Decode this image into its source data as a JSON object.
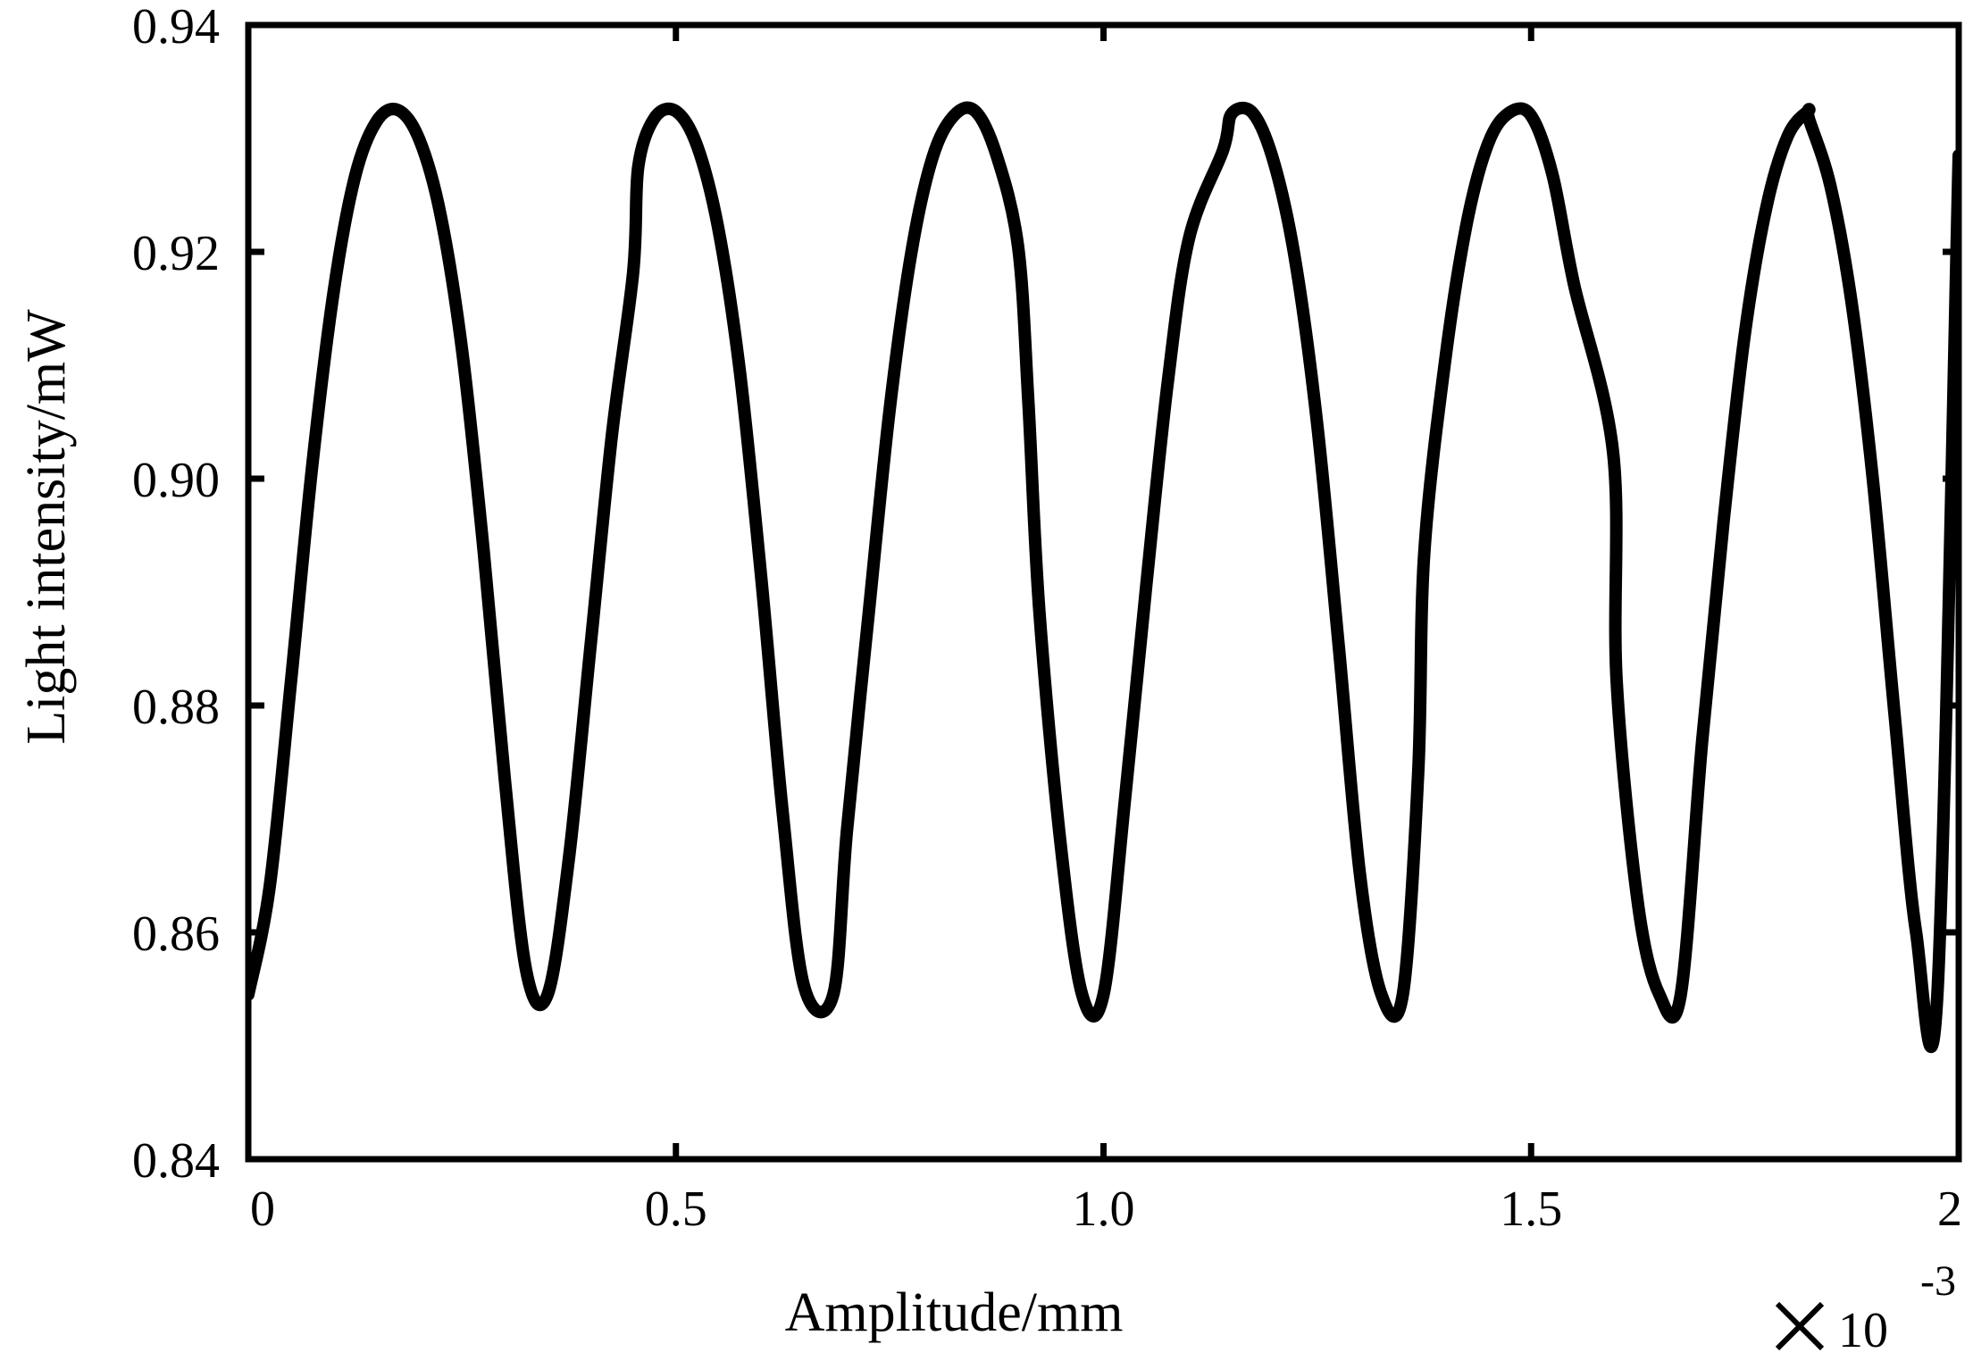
{
  "chart_data": {
    "type": "line",
    "title": "",
    "xlabel": "Amplitude/mm",
    "ylabel": "Light intensity/mW",
    "x_multiplier": {
      "base": "10",
      "exponent": "-3"
    },
    "xlim": [
      0,
      2
    ],
    "ylim": [
      0.84,
      0.94
    ],
    "x_ticks": [
      0,
      0.5,
      1.0,
      1.5,
      2
    ],
    "x_tick_labels": [
      "0",
      "0.5",
      "1.0",
      "1.5",
      "2"
    ],
    "y_ticks": [
      0.84,
      0.86,
      0.88,
      0.9,
      0.92,
      0.94
    ],
    "y_tick_labels": [
      "0.84",
      "0.86",
      "0.88",
      "0.90",
      "0.92",
      "0.94"
    ],
    "grid": false,
    "legend": "none",
    "line_color": "#000000",
    "series": [
      {
        "points": {
          "x": [
            0,
            0.025,
            0.05,
            0.075,
            0.1,
            0.125,
            0.15,
            0.175,
            0.2,
            0.225,
            0.25,
            0.275,
            0.3,
            0.325,
            0.35,
            0.375,
            0.4,
            0.425,
            0.45,
            0.456,
            0.475,
            0.5,
            0.525,
            0.55,
            0.575,
            0.6,
            0.625,
            0.65,
            0.684,
            0.7,
            0.725,
            0.75,
            0.775,
            0.8,
            0.825,
            0.85,
            0.875,
            0.9,
            0.912,
            0.925,
            0.95,
            0.975,
            1.0,
            1.025,
            1.05,
            1.075,
            1.1,
            1.14,
            1.15,
            1.175,
            1.2,
            1.225,
            1.25,
            1.275,
            1.3,
            1.325,
            1.35,
            1.368,
            1.375,
            1.4,
            1.425,
            1.45,
            1.475,
            1.5,
            1.525,
            1.55,
            1.596,
            1.6,
            1.625,
            1.65,
            1.675,
            1.7,
            1.725,
            1.75,
            1.775,
            1.8,
            1.824,
            1.825,
            1.85,
            1.875,
            1.9,
            1.925,
            1.95,
            1.975,
            2.0
          ],
          "y": [
            0.8545,
            0.864,
            0.8822,
            0.9013,
            0.9166,
            0.9267,
            0.9315,
            0.9325,
            0.9299,
            0.9232,
            0.9113,
            0.8938,
            0.8734,
            0.8566,
            0.8545,
            0.8666,
            0.8851,
            0.9037,
            0.9182,
            0.9275,
            0.9318,
            0.9324,
            0.9293,
            0.9219,
            0.9093,
            0.8911,
            0.8705,
            0.8552,
            0.8545,
            0.869,
            0.8878,
            0.9061,
            0.9198,
            0.9283,
            0.932,
            0.9324,
            0.9285,
            0.9205,
            0.907,
            0.8883,
            0.8677,
            0.8545,
            0.8545,
            0.8716,
            0.8906,
            0.9084,
            0.9212,
            0.929,
            0.9322,
            0.9322,
            0.9277,
            0.9189,
            0.9047,
            0.8853,
            0.865,
            0.8545,
            0.8545,
            0.8742,
            0.8934,
            0.9107,
            0.9226,
            0.9296,
            0.9323,
            0.932,
            0.9268,
            0.9172,
            0.9022,
            0.8822,
            0.8625,
            0.8545,
            0.8545,
            0.8769,
            0.8962,
            0.9128,
            0.9239,
            0.9302,
            0.9324,
            0.9317,
            0.9258,
            0.9154,
            0.8996,
            0.8792,
            0.8601,
            0.8545,
            0.9285
          ]
        }
      }
    ]
  }
}
